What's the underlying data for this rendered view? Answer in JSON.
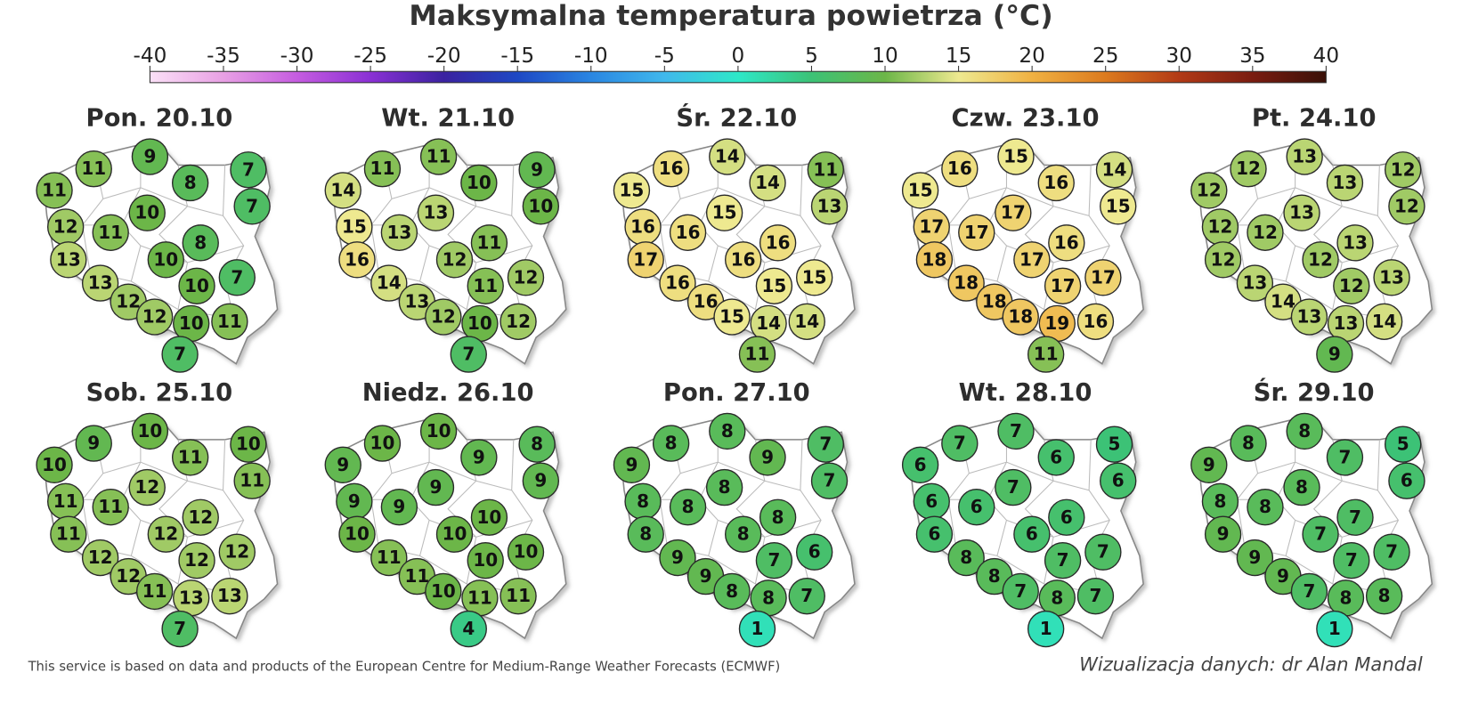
{
  "title": "Maksymalna temperatura powietrza (°C)",
  "colorbar": {
    "ticks": [
      -40,
      -35,
      -30,
      -25,
      -20,
      -15,
      -10,
      -5,
      0,
      5,
      10,
      15,
      20,
      25,
      30,
      35,
      40
    ],
    "colors": [
      "#fbe0f7",
      "#e8a0e4",
      "#c55ce0",
      "#8a30d4",
      "#3a22a0",
      "#1e48c4",
      "#2a86e2",
      "#40b8ec",
      "#2ee8c8",
      "#3cc276",
      "#6cb648",
      "#eee990",
      "#f0b142",
      "#dc7a1e",
      "#b23a16",
      "#7a1c10",
      "#3a1008"
    ]
  },
  "panels": [
    {
      "label": "Pon. 20.10",
      "values": [
        11,
        9,
        7,
        11,
        8,
        7,
        10,
        12,
        11,
        8,
        13,
        10,
        13,
        10,
        7,
        12,
        12,
        10,
        11,
        7
      ]
    },
    {
      "label": "Wt. 21.10",
      "values": [
        11,
        11,
        9,
        14,
        10,
        10,
        13,
        15,
        13,
        11,
        16,
        12,
        14,
        11,
        12,
        13,
        12,
        10,
        12,
        7
      ]
    },
    {
      "label": "Śr. 22.10",
      "values": [
        16,
        14,
        11,
        15,
        14,
        13,
        15,
        16,
        16,
        16,
        17,
        16,
        16,
        15,
        15,
        16,
        15,
        14,
        14,
        11
      ]
    },
    {
      "label": "Czw. 23.10",
      "values": [
        16,
        15,
        14,
        15,
        16,
        15,
        17,
        17,
        17,
        16,
        18,
        17,
        18,
        17,
        17,
        18,
        18,
        19,
        16,
        11
      ]
    },
    {
      "label": "Pt. 24.10",
      "values": [
        12,
        13,
        12,
        12,
        13,
        12,
        13,
        12,
        12,
        13,
        12,
        12,
        13,
        12,
        13,
        14,
        13,
        13,
        14,
        9
      ]
    },
    {
      "label": "Sob. 25.10",
      "values": [
        9,
        10,
        10,
        10,
        11,
        11,
        12,
        11,
        11,
        12,
        11,
        12,
        12,
        12,
        12,
        12,
        11,
        13,
        13,
        7
      ]
    },
    {
      "label": "Niedz. 26.10",
      "values": [
        10,
        10,
        8,
        9,
        9,
        9,
        9,
        9,
        9,
        10,
        10,
        10,
        11,
        10,
        10,
        11,
        10,
        11,
        11,
        4
      ]
    },
    {
      "label": "Pon. 27.10",
      "values": [
        8,
        8,
        7,
        9,
        9,
        7,
        8,
        8,
        8,
        8,
        8,
        8,
        9,
        7,
        6,
        9,
        8,
        8,
        7,
        1
      ]
    },
    {
      "label": "Wt. 28.10",
      "values": [
        7,
        7,
        5,
        6,
        6,
        6,
        7,
        6,
        6,
        6,
        6,
        6,
        8,
        7,
        7,
        8,
        7,
        8,
        7,
        1
      ]
    },
    {
      "label": "Śr. 29.10",
      "values": [
        8,
        8,
        5,
        9,
        7,
        6,
        8,
        8,
        8,
        7,
        9,
        7,
        9,
        7,
        7,
        9,
        7,
        8,
        8,
        1
      ]
    }
  ],
  "footer": {
    "source": "This service is based on data and products of the European Centre for Medium-Range Weather Forecasts (ECMWF)",
    "credit": "Wizualizacja danych: dr Alan Mandal"
  }
}
